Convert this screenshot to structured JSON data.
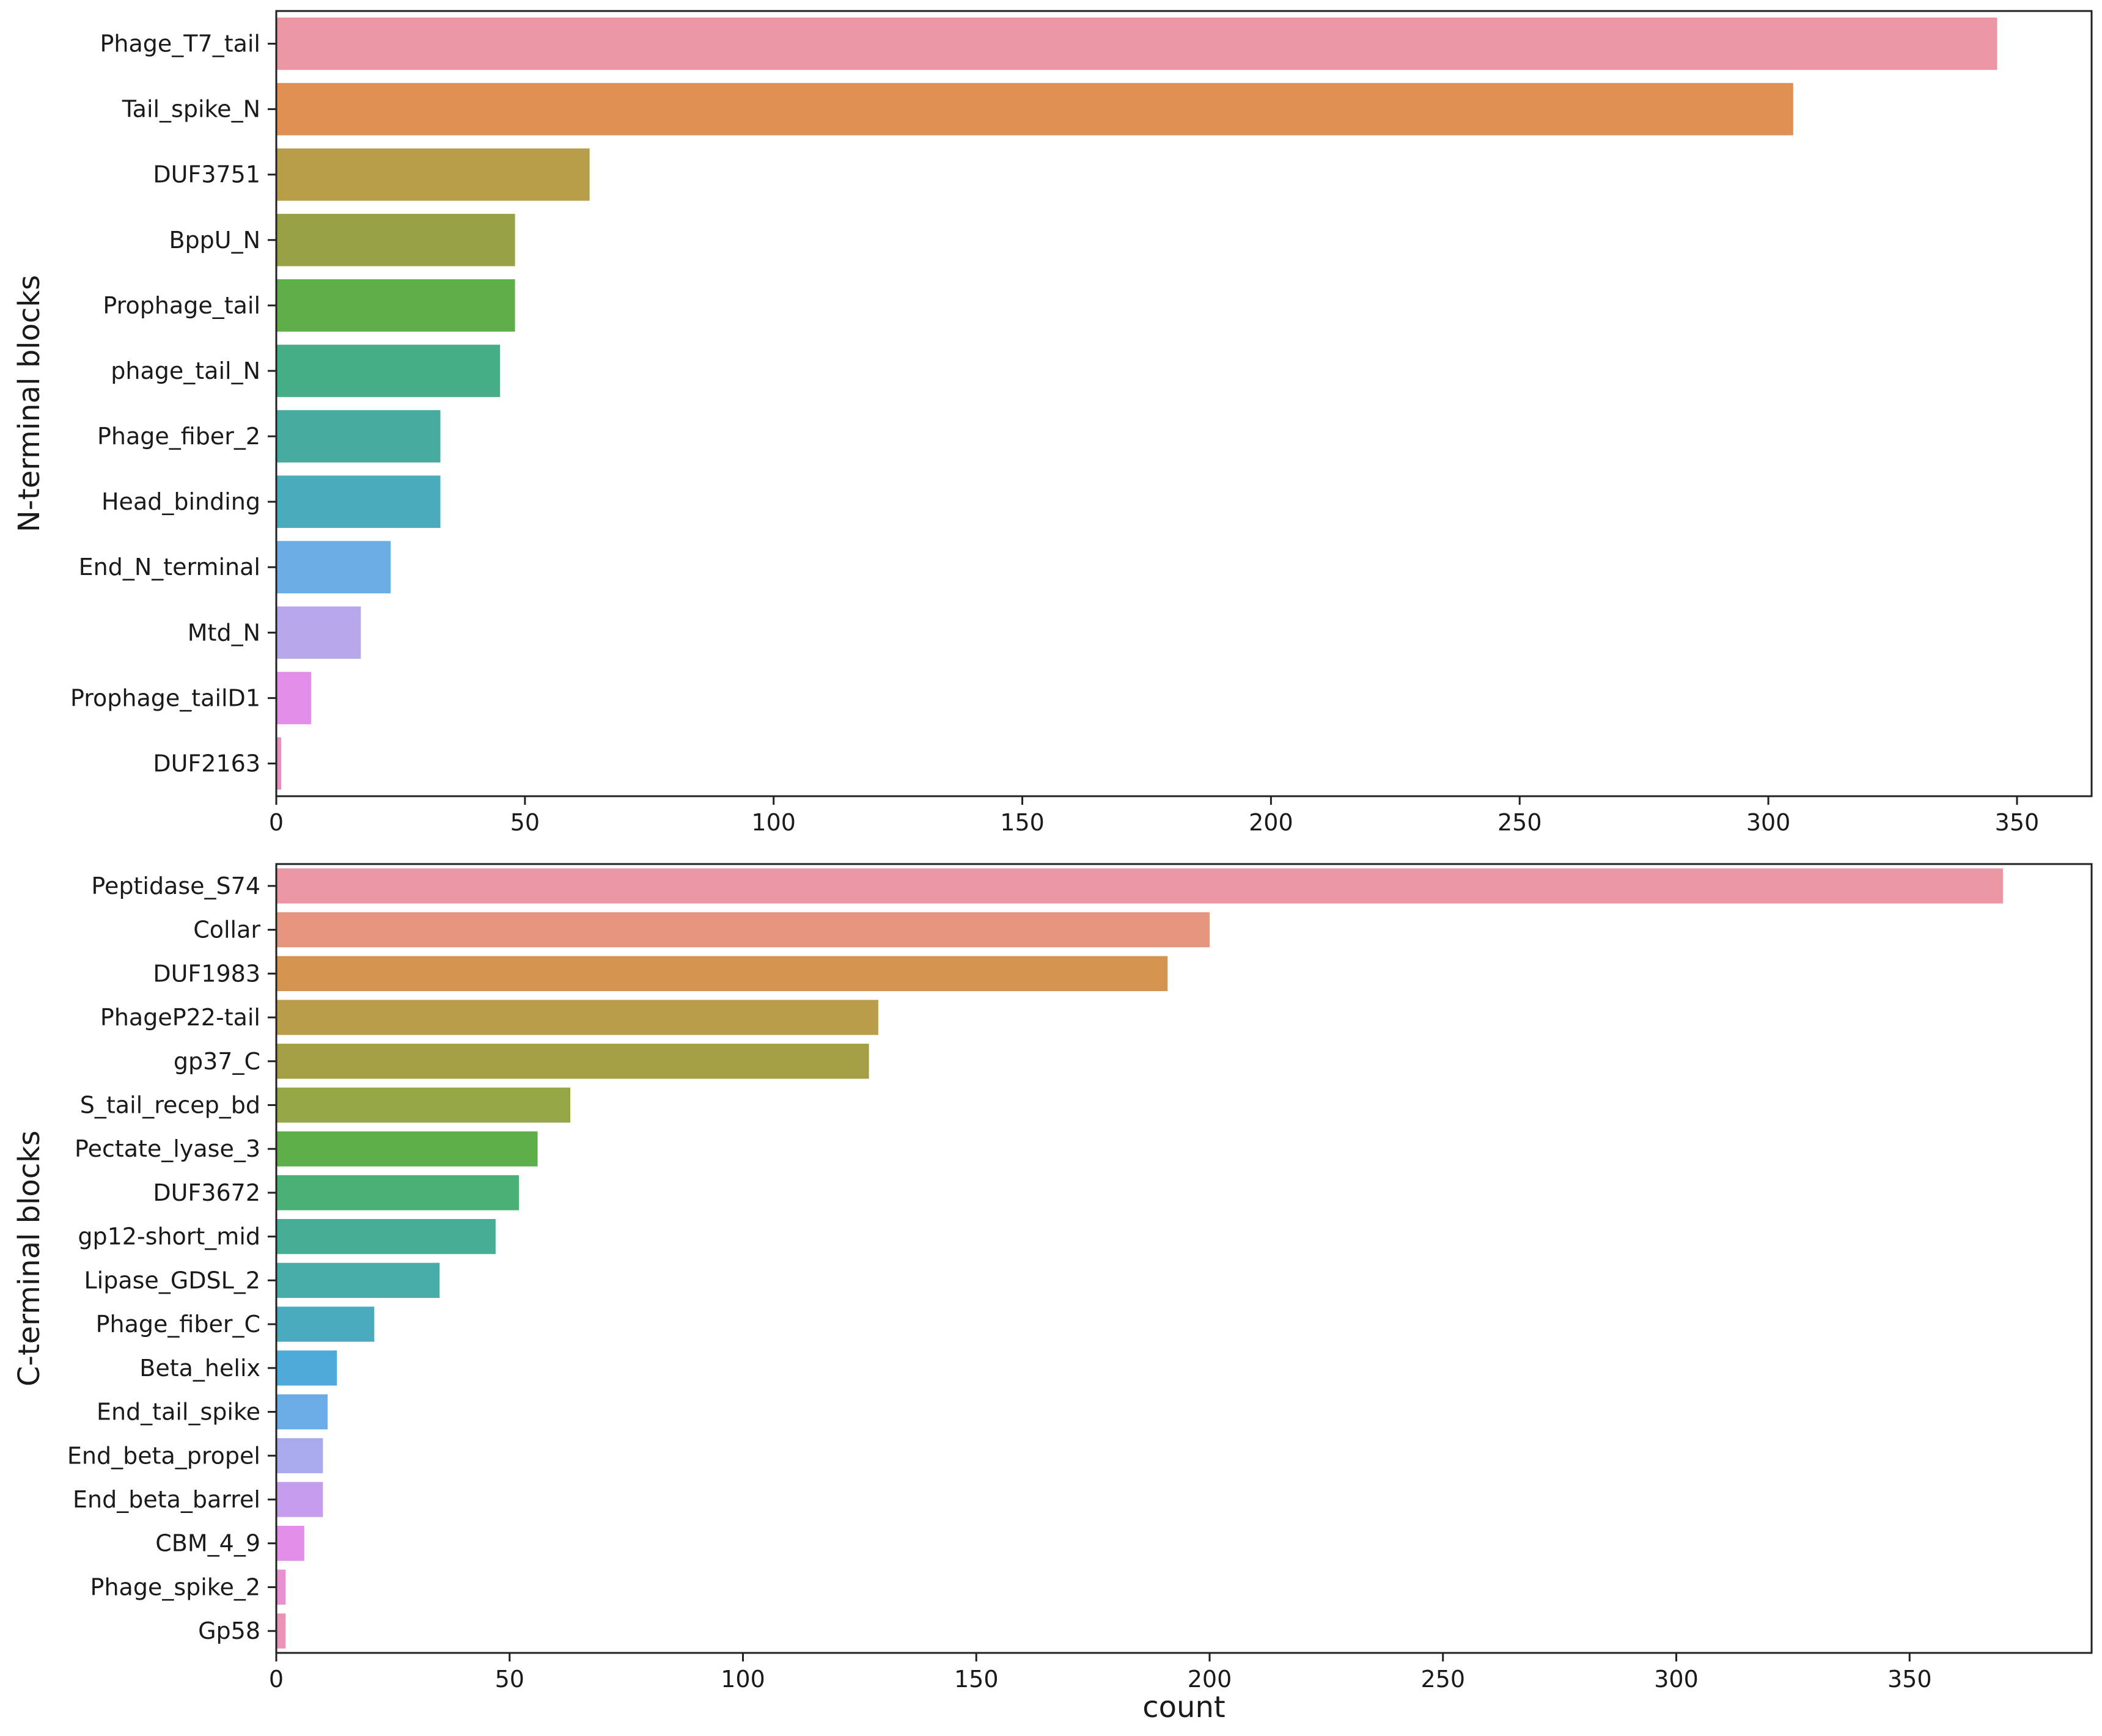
{
  "chart_data": [
    {
      "type": "bar",
      "orientation": "horizontal",
      "title": "",
      "xlabel": "",
      "ylabel": "N-terminal blocks",
      "xlim": [
        0,
        365
      ],
      "xticks": [
        0,
        50,
        100,
        150,
        200,
        250,
        300,
        350
      ],
      "grid": false,
      "categories": [
        "Phage_T7_tail",
        "Tail_spike_N",
        "DUF3751",
        "BppU_N",
        "Prophage_tail",
        "phage_tail_N",
        "Phage_fiber_2",
        "Head_binding",
        "End_N_terminal",
        "Mtd_N",
        "Prophage_tailD1",
        "DUF2163"
      ],
      "values": [
        346,
        305,
        63,
        48,
        48,
        45,
        33,
        33,
        23,
        17,
        7,
        1
      ],
      "colors": [
        "#ea96a3",
        "#e09052",
        "#b99e4a",
        "#98a146",
        "#5fae49",
        "#46ae86",
        "#48aba0",
        "#4aabbd",
        "#6bade4",
        "#b7a8ec",
        "#e28ee8",
        "#e78fc0"
      ]
    },
    {
      "type": "bar",
      "orientation": "horizontal",
      "title": "",
      "xlabel": "count",
      "ylabel": "C-terminal blocks",
      "xlim": [
        0,
        389
      ],
      "xticks": [
        0,
        50,
        100,
        150,
        200,
        250,
        300,
        350
      ],
      "grid": false,
      "categories": [
        "Peptidase_S74",
        "Collar",
        "DUF1983",
        "PhageP22-tail",
        "gp37_C",
        "S_tail_recep_bd",
        "Pectate_lyase_3",
        "DUF3672",
        "gp12-short_mid",
        "Lipase_GDSL_2",
        "Phage_fiber_C",
        "Beta_helix",
        "End_tail_spike",
        "End_beta_propel",
        "End_beta_barrel",
        "CBM_4_9",
        "Phage_spike_2",
        "Gp58"
      ],
      "values": [
        370,
        200,
        191,
        129,
        127,
        63,
        56,
        52,
        47,
        35,
        21,
        13,
        11,
        10,
        10,
        6,
        2,
        2
      ],
      "colors": [
        "#ea96a3",
        "#e6957e",
        "#d4944f",
        "#ba9d4a",
        "#a49f45",
        "#94a646",
        "#5eae4a",
        "#4bb075",
        "#48ad95",
        "#48aca9",
        "#4aabbf",
        "#4fa9d9",
        "#6aace6",
        "#a9aaed",
        "#c69cee",
        "#e38fe9",
        "#e890d2",
        "#eb92b6"
      ]
    }
  ]
}
